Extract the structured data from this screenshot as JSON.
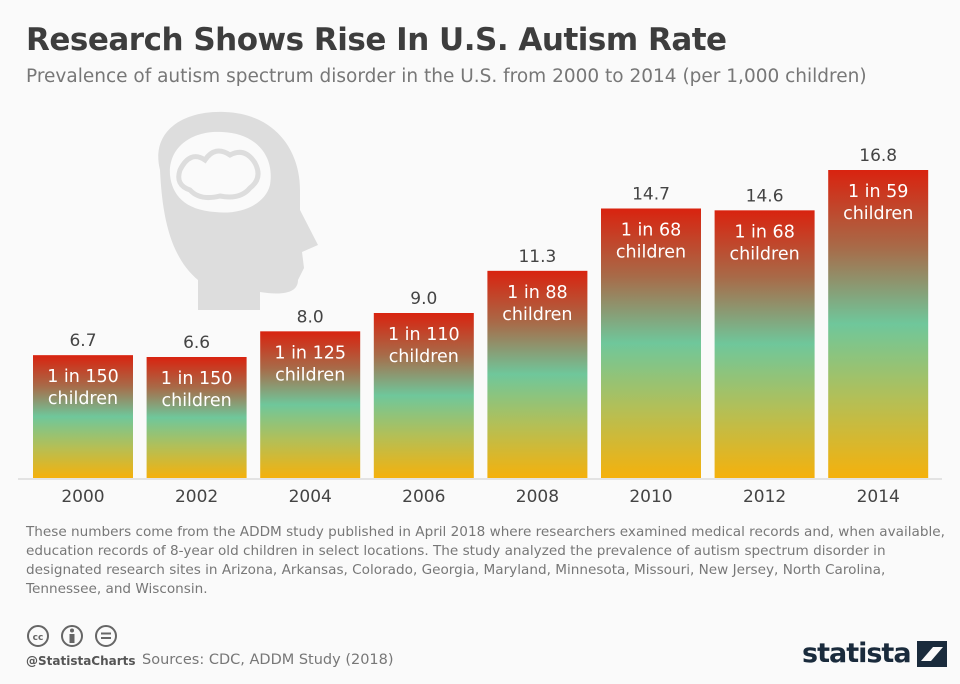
{
  "title": "Research Shows Rise In U.S. Autism Rate",
  "subtitle": "Prevalence of autism spectrum disorder in the U.S. from 2000 to 2014 (per 1,000 children)",
  "chart_data": {
    "type": "bar",
    "title": "Research Shows Rise In U.S. Autism Rate",
    "subtitle": "Prevalence of autism spectrum disorder in the U.S. from 2000 to 2014 (per 1,000 children)",
    "categories": [
      "2000",
      "2002",
      "2004",
      "2006",
      "2008",
      "2010",
      "2012",
      "2014"
    ],
    "values": [
      6.7,
      6.6,
      8.0,
      9.0,
      11.3,
      14.7,
      14.6,
      16.8
    ],
    "value_labels": [
      "6.7",
      "6.6",
      "8.0",
      "9.0",
      "11.3",
      "14.7",
      "14.6",
      "16.8"
    ],
    "bar_annotations": [
      [
        "1 in 150",
        "children"
      ],
      [
        "1 in 150",
        "children"
      ],
      [
        "1 in 125",
        "children"
      ],
      [
        "1 in 110",
        "children"
      ],
      [
        "1 in 88",
        "children"
      ],
      [
        "1 in 68",
        "children"
      ],
      [
        "1 in 68",
        "children"
      ],
      [
        "1 in 59",
        "children"
      ]
    ],
    "ylim": [
      0,
      16.8
    ],
    "grid": false,
    "gradient_colors": [
      "#d9230f",
      "#6fc79b",
      "#f5b10c"
    ]
  },
  "note": "These numbers come from the ADDM study published in April 2018 where researchers examined medical records and, when available, education records of 8-year old children in select locations. The study analyzed the prevalence of autism spectrum disorder in designated research sites in Arizona, Arkansas, Colorado, Georgia, Maryland, Minnesota, Missouri, New Jersey, North Carolina, Tennessee, and Wisconsin.",
  "footer": {
    "handle": "@StatistaCharts",
    "source": "Sources: CDC, ADDM Study (2018)",
    "logo": "statista",
    "icons": [
      "cc-icon",
      "by-icon",
      "nd-icon"
    ]
  }
}
